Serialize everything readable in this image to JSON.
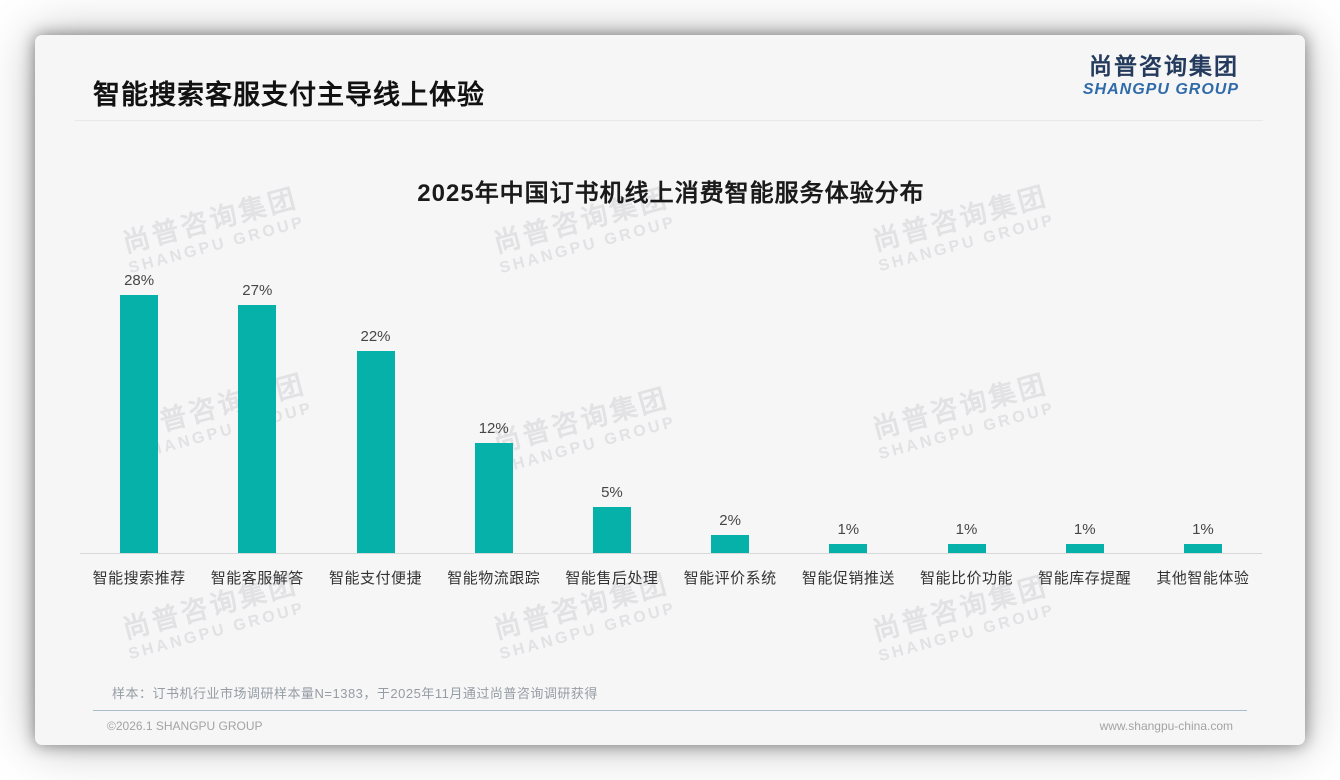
{
  "header": {
    "title": "智能搜索客服支付主导线上体验",
    "logo": {
      "cn": "尚普咨询集团",
      "en": "SHANGPU GROUP"
    }
  },
  "watermark": {
    "cn": "尚普咨询集团",
    "en": "SHANGPU GROUP"
  },
  "chart_data": {
    "type": "bar",
    "title": "2025年中国订书机线上消费智能服务体验分布",
    "categories": [
      "智能搜索推荐",
      "智能客服解答",
      "智能支付便捷",
      "智能物流跟踪",
      "智能售后处理",
      "智能评价系统",
      "智能促销推送",
      "智能比价功能",
      "智能库存提醒",
      "其他智能体验"
    ],
    "values": [
      28,
      27,
      22,
      12,
      5,
      2,
      1,
      1,
      1,
      1
    ],
    "value_labels": [
      "28%",
      "27%",
      "22%",
      "12%",
      "5%",
      "2%",
      "1%",
      "1%",
      "1%",
      "1%"
    ],
    "unit": "%",
    "xlabel": "",
    "ylabel": "",
    "ylim": [
      0,
      30
    ],
    "grid": false,
    "legend": "none",
    "bar_color": "#06B1A9"
  },
  "footnote": "样本：订书机行业市场调研样本量N=1383，于2025年11月通过尚普咨询调研获得",
  "footer": {
    "copyright": "©2026.1 SHANGPU GROUP",
    "website": "www.shangpu-china.com"
  },
  "colors": {
    "bar": "#06B1A9",
    "logo_cn": "#253B5E",
    "logo_en": "#2F6BA8",
    "card_bg": "#F6F6F7",
    "divider": "#A8BECD",
    "axis": "#D8D8D8"
  }
}
